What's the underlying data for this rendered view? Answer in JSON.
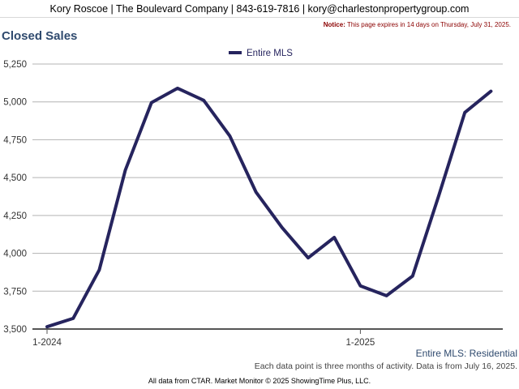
{
  "header": {
    "contact": "Kory Roscoe | The Boulevard Company | 843-619-7816 | kory@charlestonpropertygroup.com"
  },
  "notice": {
    "label": "Notice:",
    "text": "This page expires in 14 days on Thursday, July 31, 2025."
  },
  "title": "Closed Sales",
  "series_caption": "Entire MLS: Residential",
  "data_note": "Each data point is three months of activity. Data is from July 16, 2025.",
  "footer": "All data from CTAR. Market Monitor © 2025 ShowingTime Plus, LLC.",
  "colors": {
    "series": "#26245e",
    "grid": "#b3b3b3",
    "axis": "#555555",
    "title": "#2f4a6e"
  },
  "chart_data": {
    "type": "line",
    "title": "Closed Sales",
    "legend_position": "top-center",
    "grid": true,
    "ylim": [
      3500,
      5250
    ],
    "yticks": [
      3500,
      3750,
      4000,
      4250,
      4500,
      4750,
      5000,
      5250
    ],
    "ytick_labels": [
      "3,500",
      "3,750",
      "4,000",
      "4,250",
      "4,500",
      "4,750",
      "5,000",
      "5,250"
    ],
    "x": [
      "1-2024",
      "2-2024",
      "3-2024",
      "4-2024",
      "5-2024",
      "6-2024",
      "7-2024",
      "8-2024",
      "9-2024",
      "10-2024",
      "11-2024",
      "12-2024",
      "1-2025",
      "2-2025",
      "3-2025",
      "4-2025",
      "5-2025",
      "6-2025"
    ],
    "xtick_labels": [
      "1-2024",
      "1-2025"
    ],
    "series": [
      {
        "name": "Entire MLS",
        "values": [
          3515,
          3570,
          3890,
          4550,
          4995,
          5090,
          5010,
          4775,
          4405,
          4170,
          3970,
          4105,
          3785,
          3720,
          3850,
          4380,
          4930,
          5070
        ]
      }
    ]
  }
}
